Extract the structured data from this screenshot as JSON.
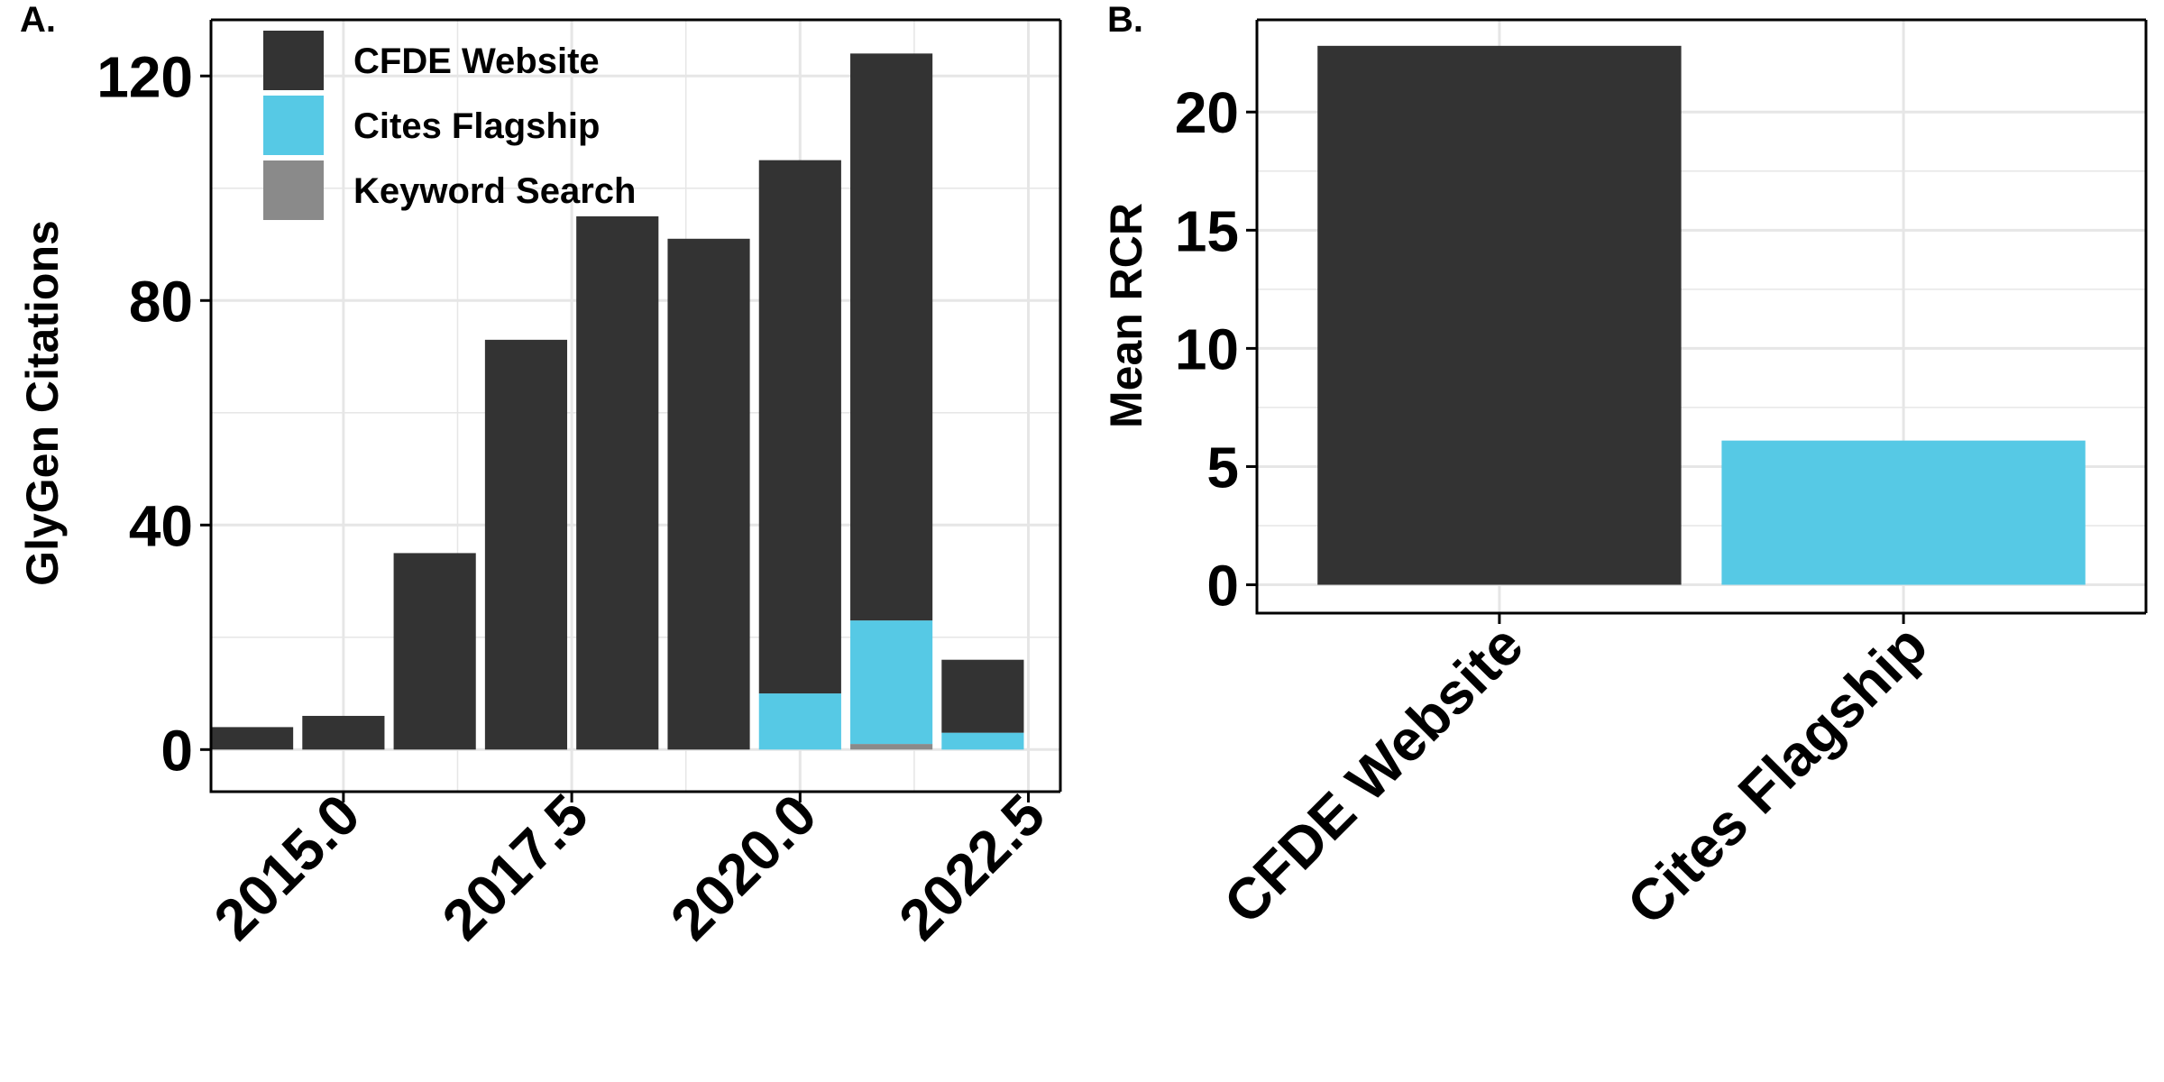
{
  "colors": {
    "cfde_website": "#333333",
    "cites_flagship": "#56C9E5",
    "keyword_search": "#8A8A8A",
    "grid": "#E6E6E6",
    "axis": "#000000"
  },
  "chart_data": [
    {
      "panel_label": "A.",
      "type": "bar",
      "stacked": true,
      "ylabel": "GlyGen Citations",
      "xlabel": "",
      "xlim": [
        2013.55,
        2022.85
      ],
      "ylim": [
        -7.5,
        130
      ],
      "xticks": [
        2015.0,
        2017.5,
        2020.0,
        2022.5
      ],
      "xtick_labels": [
        "2015.0",
        "2017.5",
        "2020.0",
        "2022.5"
      ],
      "yticks": [
        0,
        40,
        80,
        120
      ],
      "ytick_labels": [
        "0",
        "40",
        "80",
        "120"
      ],
      "grid": true,
      "legend": {
        "position": "top-left",
        "entries": [
          {
            "label": "CFDE Website",
            "color_key": "cfde_website"
          },
          {
            "label": "Cites Flagship",
            "color_key": "cites_flagship"
          },
          {
            "label": "Keyword Search",
            "color_key": "keyword_search"
          }
        ]
      },
      "x": [
        2014,
        2015,
        2016,
        2017,
        2018,
        2019,
        2020,
        2021,
        2022
      ],
      "series": [
        {
          "name": "Keyword Search",
          "color_key": "keyword_search",
          "values": [
            0,
            0,
            0,
            0,
            0,
            0,
            0,
            1,
            0
          ]
        },
        {
          "name": "Cites Flagship",
          "color_key": "cites_flagship",
          "values": [
            0,
            0,
            0,
            0,
            0,
            0,
            10,
            22,
            3
          ]
        },
        {
          "name": "CFDE Website",
          "color_key": "cfde_website",
          "values": [
            4,
            6,
            35,
            73,
            95,
            91,
            95,
            101,
            13
          ]
        }
      ]
    },
    {
      "panel_label": "B.",
      "type": "bar",
      "ylabel": "Mean RCR",
      "xlabel": "",
      "ylim": [
        -1.2,
        23.9
      ],
      "yticks": [
        0,
        5,
        10,
        15,
        20
      ],
      "ytick_labels": [
        "0",
        "5",
        "10",
        "15",
        "20"
      ],
      "grid": true,
      "categories": [
        "CFDE Website",
        "Cites Flagship"
      ],
      "values": [
        22.8,
        6.1
      ],
      "color_keys": [
        "cfde_website",
        "cites_flagship"
      ]
    }
  ]
}
